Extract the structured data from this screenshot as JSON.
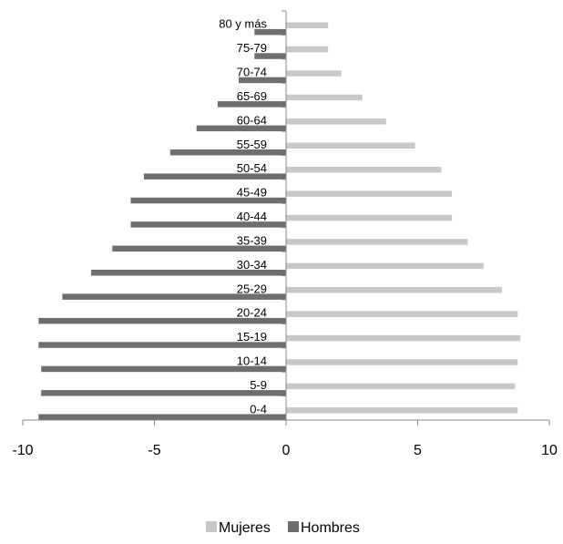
{
  "chart_data": {
    "type": "bar",
    "orientation": "horizontal",
    "categories": [
      "0-4",
      "5-9",
      "10-14",
      "15-19",
      "20-24",
      "25-29",
      "30-34",
      "35-39",
      "40-44",
      "45-49",
      "50-54",
      "55-59",
      "60-64",
      "65-69",
      "70-74",
      "75-79",
      "80 y más"
    ],
    "series": [
      {
        "name": "Mujeres",
        "color": "#c8c8c8",
        "values": [
          8.8,
          8.7,
          8.8,
          8.9,
          8.8,
          8.2,
          7.5,
          6.9,
          6.3,
          6.3,
          5.9,
          4.9,
          3.8,
          2.9,
          2.1,
          1.6,
          1.6
        ]
      },
      {
        "name": "Hombres",
        "color": "#6e6e6e",
        "values": [
          -9.4,
          -9.3,
          -9.3,
          -9.4,
          -9.4,
          -8.5,
          -7.4,
          -6.6,
          -5.9,
          -5.9,
          -5.4,
          -4.4,
          -3.4,
          -2.6,
          -1.8,
          -1.2,
          -1.2
        ]
      }
    ],
    "x_ticks": [
      "-10",
      "-5",
      "0",
      "5",
      "10"
    ],
    "xlim": [
      -10,
      10
    ],
    "grid": false,
    "legend_position": "bottom"
  }
}
